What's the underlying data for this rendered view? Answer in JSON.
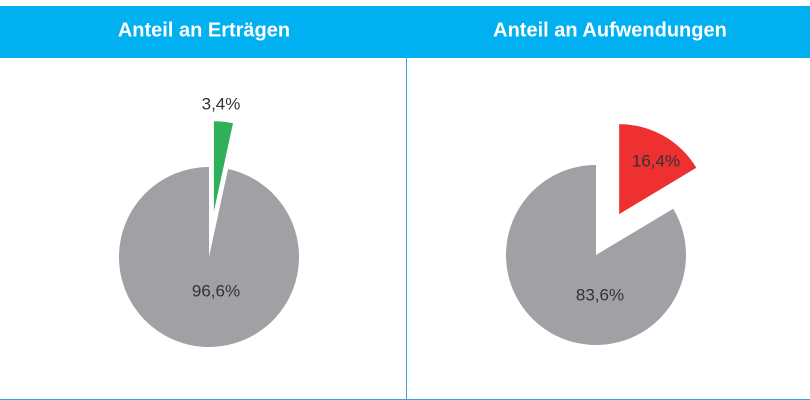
{
  "chart_data": [
    {
      "type": "pie",
      "title": "Anteil an Erträgen",
      "values": [
        3.4,
        96.6
      ],
      "value_labels": [
        "3,4%",
        "96,6%"
      ],
      "colors": [
        "#2fb05a",
        "#a1a1a5"
      ]
    },
    {
      "type": "pie",
      "title": "Anteil an Aufwendungen",
      "values": [
        16.4,
        83.6
      ],
      "value_labels": [
        "16,4%",
        "83,6%"
      ],
      "colors": [
        "#ee3130",
        "#a1a1a5"
      ]
    }
  ]
}
